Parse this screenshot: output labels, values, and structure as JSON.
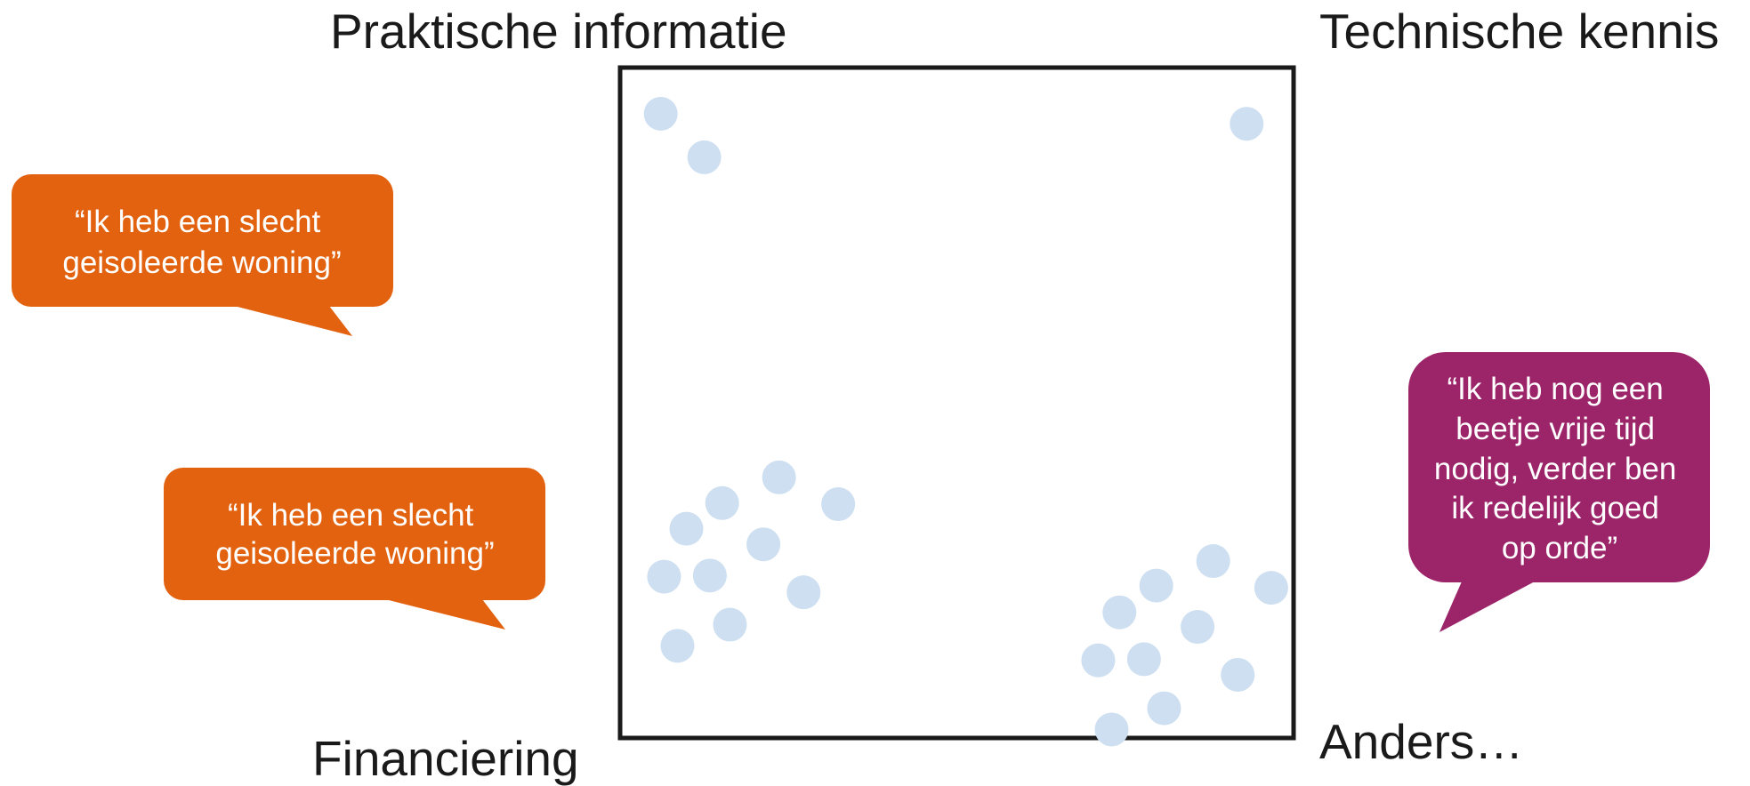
{
  "corners": {
    "top_left": "Praktische informatie",
    "top_right": "Technische kennis",
    "bottom_left": "Financiering",
    "bottom_right": "Anders…"
  },
  "bubbles": [
    {
      "lines": [
        "“Ik heb een slecht",
        "geisoleerde woning”"
      ]
    },
    {
      "lines": [
        "“Ik heb een slecht",
        "geisoleerde woning”"
      ]
    },
    {
      "lines": [
        "“Ik heb nog een",
        "beetje vrije tijd",
        "nodig, verder ben",
        "ik redelijk goed",
        "op orde”"
      ]
    }
  ]
}
